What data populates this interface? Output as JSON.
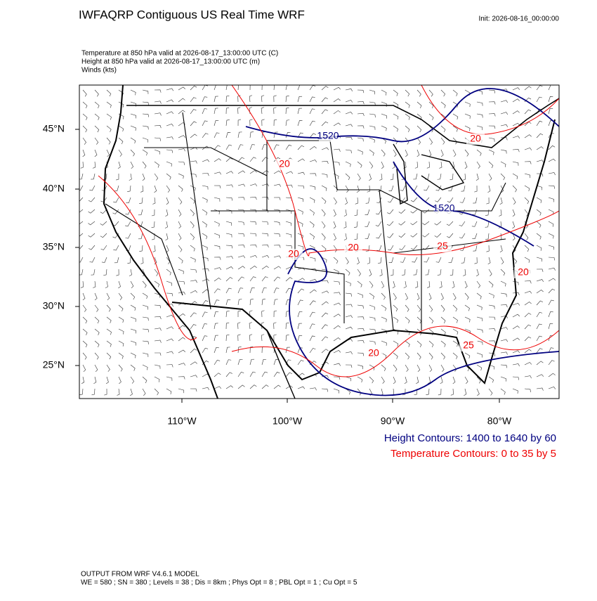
{
  "header": {
    "title": "IWFAQRP Contiguous US Real Time WRF",
    "init": "Init: 2026-08-16_00:00:00"
  },
  "fields": [
    "Temperature at 850 hPa valid at 2026-08-17_13:00:00 UTC   (C)",
    "Height at 850 hPa valid at 2026-08-17_13:00:00 UTC   (m)",
    "Winds   (kts)"
  ],
  "map": {
    "lat_labels": [
      "45°N",
      "40°N",
      "35°N",
      "30°N",
      "25°N"
    ],
    "lon_labels": [
      "110°W",
      "100°W",
      "90°W",
      "80°W"
    ],
    "contour_labels": [
      "1520",
      "1520",
      "20",
      "20",
      "20",
      "25",
      "20",
      "20",
      "20",
      "25"
    ]
  },
  "legend": [
    "Height Contours: 1400 to 1640 by 60",
    "Temperature Contours: 0 to 35 by 5"
  ],
  "footer": [
    "OUTPUT FROM WRF V4.6.1 MODEL",
    "WE = 580 ; SN = 380 ; Levels = 38 ; Dis = 8km ; Phys Opt = 8 ; PBL Opt = 1 ; Cu Opt = 5"
  ]
}
